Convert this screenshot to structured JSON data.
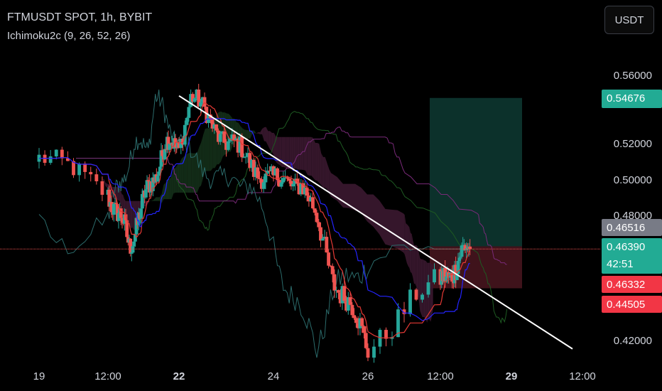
{
  "header": {
    "symbol_line": "FTMUSDT SPOT, 1h, BYBIT",
    "indicator_line": "Ichimoku2c (9, 26, 52, 26)",
    "currency_button": "USDT"
  },
  "colors": {
    "background": "#000000",
    "axis_text": "#d1d4dc",
    "up": "#26a69a",
    "down": "#ef5350",
    "trendline": "#ffffff",
    "cloud_green": "#14301a",
    "cloud_red": "#3b1830",
    "conversion_line": "#e53935",
    "base_line": "#2424ff",
    "lagging_span": "#2b6b6b",
    "span_a": "#1e5a22",
    "span_b": "#7a2a7a",
    "current_price_line": "#ef5350",
    "target_zone": "#0e3a33",
    "stop_zone": "#4a1620"
  },
  "chart_data": {
    "type": "candlestick",
    "title": "FTMUSDT SPOT, 1h, BYBIT",
    "indicator": "Ichimoku2c (9, 26, 52, 26)",
    "x_tick_labels": [
      "19",
      "12:00",
      "22",
      "24",
      "26",
      "12:00",
      "29",
      "12:00"
    ],
    "x_tick_bold": [
      false,
      false,
      true,
      false,
      false,
      false,
      true,
      false
    ],
    "y_tick_labels": [
      "0.56000",
      "0.52000",
      "0.50000",
      "0.48000",
      "0.42000"
    ],
    "y_ticks": [
      0.56,
      0.52,
      0.5,
      0.48,
      0.42
    ],
    "ylim": [
      0.4125,
      0.5745
    ],
    "price_scale_note": "non-linear",
    "price_path_key_points": [
      {
        "label": "19 start",
        "price": 0.512
      },
      {
        "label": "19 low",
        "price": 0.466
      },
      {
        "label": "20",
        "price": 0.518
      },
      {
        "label": "21",
        "price": 0.52
      },
      {
        "label": "22 high",
        "price": 0.547
      },
      {
        "label": "23",
        "price": 0.52
      },
      {
        "label": "24",
        "price": 0.498
      },
      {
        "label": "24 late",
        "price": 0.5
      },
      {
        "label": "25",
        "price": 0.452
      },
      {
        "label": "26 low",
        "price": 0.418
      },
      {
        "label": "26 late",
        "price": 0.455
      },
      {
        "label": "27 last",
        "price": 0.4639
      }
    ],
    "trendline": {
      "from": {
        "date": "22",
        "price": 0.548
      },
      "to": {
        "date": "29 12:00",
        "price": 0.416
      }
    },
    "position": {
      "target": 0.54676,
      "entry": 0.46516,
      "stop": 0.44505
    },
    "price_labels": [
      {
        "text": "0.54676",
        "color": "#22ab94"
      },
      {
        "text": "0.46516",
        "color": "#787b86"
      },
      {
        "text": "0.46390",
        "color": "#22ab94",
        "subtext": "42:51"
      },
      {
        "text": "0.46332",
        "color": "#f23645"
      },
      {
        "text": "0.44505",
        "color": "#f23645"
      }
    ]
  }
}
